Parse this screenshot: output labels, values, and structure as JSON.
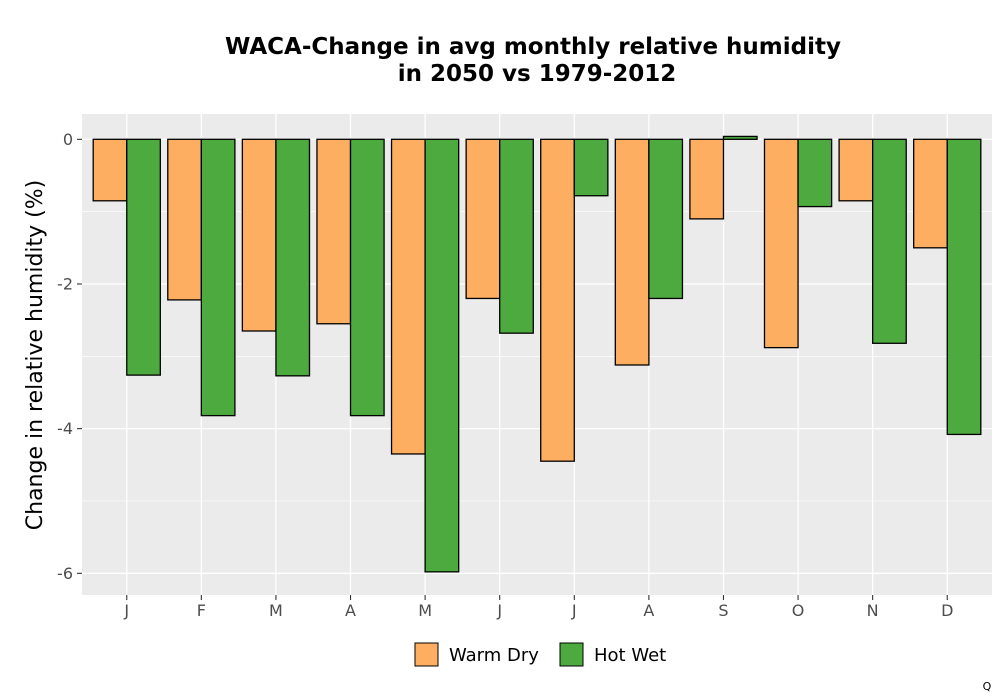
{
  "chart_data": {
    "type": "bar",
    "title_lines": [
      "WACA-Change in avg monthly relative humidity",
      "in 2050 vs 1979-2012"
    ],
    "xlabel": "",
    "ylabel": "Change in relative humidity (%)",
    "categories": [
      "J",
      "F",
      "M",
      "A",
      "M",
      "J",
      "J",
      "A",
      "S",
      "O",
      "N",
      "D"
    ],
    "series": [
      {
        "name": "Warm Dry",
        "color": "#FDAE61",
        "values": [
          -0.85,
          -2.22,
          -2.65,
          -2.55,
          -4.35,
          -2.2,
          -4.45,
          -3.12,
          -1.1,
          -2.88,
          -0.85,
          -1.5
        ]
      },
      {
        "name": "Hot Wet",
        "color": "#4DAA3F",
        "values": [
          -3.26,
          -3.82,
          -3.27,
          -3.82,
          -5.98,
          -2.68,
          -0.78,
          -2.2,
          0.04,
          -0.93,
          -2.82,
          -4.08
        ]
      }
    ],
    "ylim": [
      -6.3,
      0.35
    ],
    "yticks": [
      0,
      -2,
      -4,
      -6
    ],
    "ytick_labels": [
      "0",
      "-2",
      "-4",
      "-6"
    ],
    "grid": true,
    "legend_position": "bottom"
  },
  "corner_mark": "Q"
}
